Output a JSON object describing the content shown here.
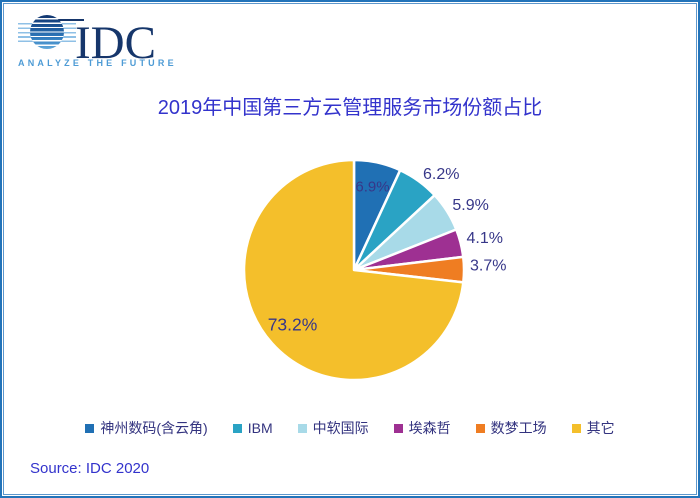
{
  "logo": {
    "name": "IDC",
    "tagline": "ANALYZE THE FUTURE"
  },
  "source": "Source: IDC 2020",
  "colors": {
    "title_text": "#3333CC",
    "slice_label_text": "#373789",
    "legend_text": "#33337F",
    "frame_border": "#2273B9",
    "logo_navy": "#16366B",
    "logo_tagline_blue": "#4D9BD5"
  },
  "chart_data": {
    "type": "pie",
    "title": "2019年中国第三方云管理服务市场份额占比",
    "unit": "%",
    "start_angle_deg": 0,
    "direction": "clockwise",
    "legend_position": "bottom",
    "series": [
      {
        "name": "神州数码(含云角)",
        "value": 6.9,
        "label": "6.9%",
        "color": "#2070B4",
        "label_inside": true
      },
      {
        "name": "IBM",
        "value": 6.2,
        "label": "6.2%",
        "color": "#2AA3C4",
        "label_inside": false
      },
      {
        "name": "中软国际",
        "value": 5.9,
        "label": "5.9%",
        "color": "#A8DAE8",
        "label_inside": false
      },
      {
        "name": "埃森哲",
        "value": 4.1,
        "label": "4.1%",
        "color": "#9E3092",
        "label_inside": false
      },
      {
        "name": "数梦工场",
        "value": 3.7,
        "label": "3.7%",
        "color": "#EF7D22",
        "label_inside": false
      },
      {
        "name": "其它",
        "value": 73.2,
        "label": "73.2%",
        "color": "#F4BF2B",
        "label_inside": true
      }
    ]
  }
}
